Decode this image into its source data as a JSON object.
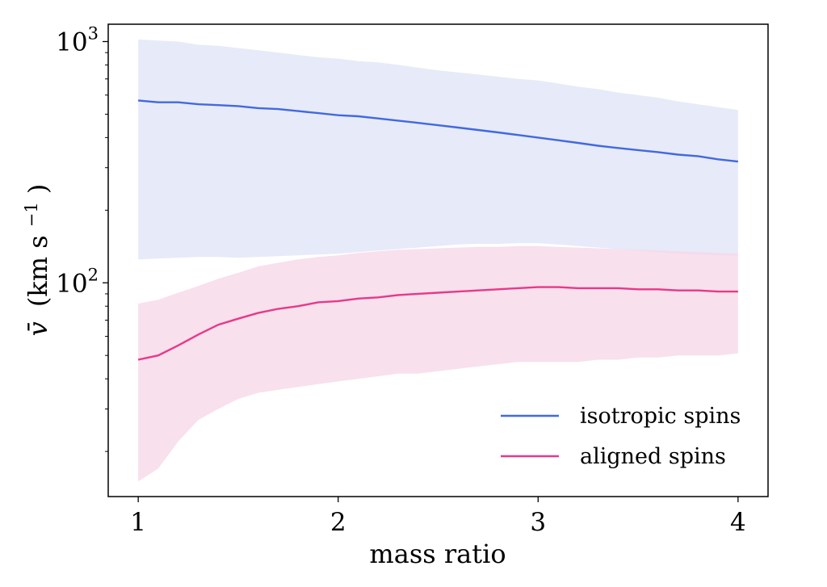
{
  "chart_data": {
    "type": "line",
    "title": "",
    "xlabel": "mass ratio",
    "ylabel_main": "v̄",
    "ylabel_unit": "(km s",
    "ylabel_exp": "−1",
    "ylabel_close": ")",
    "xlim": [
      0.85,
      4.15
    ],
    "ylim": [
      13.0,
      1180.0
    ],
    "yscale": "log",
    "grid": false,
    "legend_position": "lower-right",
    "x_ticks": [
      {
        "value": 1,
        "label": "1"
      },
      {
        "value": 2,
        "label": "2"
      },
      {
        "value": 3,
        "label": "3"
      },
      {
        "value": 4,
        "label": "4"
      }
    ],
    "y_ticks": [
      {
        "value": 100,
        "base": "10",
        "exp": "2"
      },
      {
        "value": 1000,
        "base": "10",
        "exp": "3"
      }
    ],
    "x": [
      1.0,
      1.1,
      1.2,
      1.3,
      1.4,
      1.5,
      1.6,
      1.7,
      1.8,
      1.9,
      2.0,
      2.1,
      2.2,
      2.3,
      2.4,
      2.5,
      2.6,
      2.7,
      2.8,
      2.9,
      3.0,
      3.1,
      3.2,
      3.3,
      3.4,
      3.5,
      3.6,
      3.7,
      3.8,
      3.9,
      4.0
    ],
    "series": [
      {
        "name": "isotropic spins",
        "color": "#4169e1",
        "band_color": "#dfe3f6",
        "median": [
          570,
          560,
          560,
          550,
          545,
          540,
          530,
          525,
          515,
          505,
          495,
          490,
          480,
          470,
          460,
          450,
          440,
          430,
          420,
          410,
          400,
          390,
          380,
          370,
          362,
          355,
          348,
          340,
          335,
          325,
          318
        ],
        "upper": [
          1020,
          1010,
          1000,
          970,
          960,
          940,
          920,
          900,
          880,
          860,
          850,
          830,
          820,
          800,
          780,
          760,
          745,
          730,
          715,
          700,
          690,
          670,
          650,
          635,
          615,
          600,
          585,
          565,
          550,
          535,
          520
        ],
        "lower": [
          125,
          126,
          127,
          128,
          128,
          127,
          128,
          129,
          130,
          131,
          132,
          134,
          136,
          138,
          140,
          142,
          144,
          145,
          145,
          146,
          146,
          144,
          142,
          140,
          138,
          136,
          134,
          132,
          131,
          130,
          130
        ]
      },
      {
        "name": "aligned spins",
        "color": "#e8388a",
        "band_color": "#f6d6e7",
        "median": [
          48,
          50,
          55,
          61,
          67,
          71,
          75,
          78,
          80,
          83,
          84,
          86,
          87,
          89,
          90,
          91,
          92,
          93,
          94,
          95,
          96,
          96,
          95,
          95,
          95,
          94,
          94,
          93,
          93,
          92,
          92
        ],
        "upper": [
          82,
          85,
          91,
          97,
          104,
          110,
          117,
          121,
          125,
          128,
          130,
          133,
          135,
          137,
          138,
          139,
          140,
          141,
          141,
          142,
          142,
          141,
          140,
          139,
          138,
          137,
          136,
          135,
          134,
          133,
          132
        ],
        "lower": [
          15,
          17,
          22,
          27,
          30,
          33,
          35,
          36,
          37,
          38,
          39,
          40,
          41,
          42,
          42,
          43,
          44,
          45,
          46,
          47,
          47,
          47,
          47,
          48,
          48,
          49,
          49,
          50,
          50,
          50,
          51
        ]
      }
    ]
  }
}
